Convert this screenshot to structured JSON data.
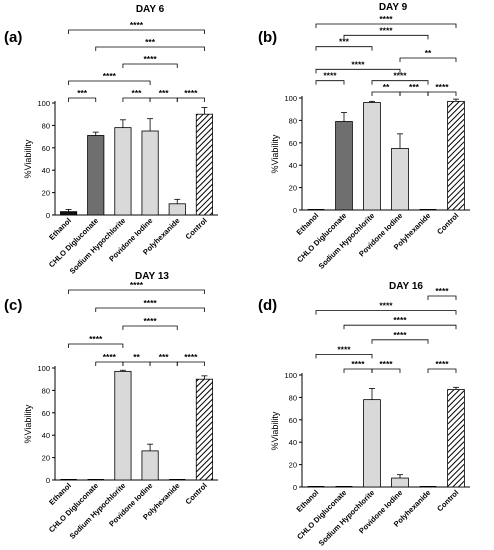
{
  "chart_data": [
    {
      "type": "bar",
      "panel": "(a)",
      "title": "DAY 6",
      "xlabel": "",
      "ylabel": "%Viability",
      "ylim": [
        0,
        100
      ],
      "yticks": [
        0,
        20,
        40,
        60,
        80,
        100
      ],
      "categories": [
        "Ethanol",
        "CHLO Digluconate",
        "Sodium Hypochlorite",
        "Povidone Iodine",
        "Polyhexanide",
        "Control"
      ],
      "values": [
        3,
        71,
        78,
        75,
        10,
        90
      ],
      "errors": [
        2,
        3,
        7,
        11,
        4,
        6
      ],
      "fills": [
        "black",
        "dark",
        "light",
        "light",
        "light",
        "hatch"
      ],
      "brackets": [
        {
          "from": 0,
          "to": 5,
          "label": "****"
        },
        {
          "from": 1,
          "to": 5,
          "label": "***"
        },
        {
          "from": 2,
          "to": 4,
          "label": "****"
        },
        {
          "from": 0,
          "to": 3,
          "label": "****"
        },
        {
          "from": 2,
          "to": 3,
          "label": "***"
        },
        {
          "from": 0,
          "to": 1,
          "label": "***"
        },
        {
          "from": 3,
          "to": 4,
          "label": "***"
        },
        {
          "from": 4,
          "to": 5,
          "label": "****"
        }
      ]
    },
    {
      "type": "bar",
      "panel": "(b)",
      "title": "DAY 9",
      "xlabel": "",
      "ylabel": "%Viability",
      "ylim": [
        0,
        100
      ],
      "yticks": [
        0,
        20,
        40,
        60,
        80,
        100
      ],
      "categories": [
        "Ethanol",
        "CHLO Digluconate",
        "Sodium Hypochlorite",
        "Povidone Iodine",
        "Polyhexanide",
        "Control"
      ],
      "values": [
        0,
        79,
        96,
        55,
        0,
        97
      ],
      "errors": [
        0,
        8,
        1,
        13,
        0,
        2
      ],
      "fills": [
        "black",
        "dark",
        "light",
        "light",
        "light",
        "hatch"
      ],
      "brackets": [
        {
          "from": 0,
          "to": 5,
          "label": "****"
        },
        {
          "from": 1,
          "to": 4,
          "label": "****"
        },
        {
          "from": 0,
          "to": 2,
          "label": "***"
        },
        {
          "from": 3,
          "to": 5,
          "label": "**"
        },
        {
          "from": 0,
          "to": 3,
          "label": "****"
        },
        {
          "from": 2,
          "to": 4,
          "label": "****"
        },
        {
          "from": 0,
          "to": 1,
          "label": "****"
        },
        {
          "from": 2,
          "to": 3,
          "label": "**"
        },
        {
          "from": 3,
          "to": 4,
          "label": "***"
        },
        {
          "from": 4,
          "to": 5,
          "label": "****"
        }
      ]
    },
    {
      "type": "bar",
      "panel": "(c)",
      "title": "DAY 13",
      "xlabel": "",
      "ylabel": "%Viability",
      "ylim": [
        0,
        100
      ],
      "yticks": [
        0,
        20,
        40,
        60,
        80,
        100
      ],
      "categories": [
        "Ethanol",
        "CHLO Digluconate",
        "Sodium Hypochlorite",
        "Povidone Iodine",
        "Polyhexanide",
        "Control"
      ],
      "values": [
        0,
        0,
        97,
        26,
        0,
        90
      ],
      "errors": [
        0,
        0,
        1,
        6,
        0,
        3
      ],
      "fills": [
        "black",
        "dark",
        "light",
        "light",
        "light",
        "hatch"
      ],
      "brackets": [
        {
          "from": 0,
          "to": 5,
          "label": "****"
        },
        {
          "from": 1,
          "to": 5,
          "label": "****"
        },
        {
          "from": 2,
          "to": 4,
          "label": "****"
        },
        {
          "from": 0,
          "to": 2,
          "label": "****"
        },
        {
          "from": 1,
          "to": 2,
          "label": "****"
        },
        {
          "from": 2,
          "to": 3,
          "label": "**"
        },
        {
          "from": 3,
          "to": 4,
          "label": "***"
        },
        {
          "from": 4,
          "to": 5,
          "label": "****"
        }
      ]
    },
    {
      "type": "bar",
      "panel": "(d)",
      "title": "DAY 16",
      "xlabel": "",
      "ylabel": "%Viability",
      "ylim": [
        0,
        100
      ],
      "yticks": [
        0,
        20,
        40,
        60,
        80,
        100
      ],
      "categories": [
        "Ethanol",
        "CHLO Digluconate",
        "Sodium Hypochlorite",
        "Povidone Iodine",
        "Polyhexanide",
        "Control"
      ],
      "values": [
        0,
        0,
        78,
        8,
        0,
        87
      ],
      "errors": [
        0,
        0,
        10,
        3,
        0,
        2
      ],
      "fills": [
        "black",
        "dark",
        "light",
        "light",
        "light",
        "hatch"
      ],
      "brackets": [
        {
          "from": 4,
          "to": 5,
          "label": "****"
        },
        {
          "from": 0,
          "to": 5,
          "label": "****"
        },
        {
          "from": 1,
          "to": 5,
          "label": "****"
        },
        {
          "from": 2,
          "to": 4,
          "label": "****"
        },
        {
          "from": 0,
          "to": 2,
          "label": "****"
        },
        {
          "from": 1,
          "to": 2,
          "label": "****"
        },
        {
          "from": 2,
          "to": 3,
          "label": "****"
        },
        {
          "from": 4,
          "to": 5,
          "label": "****"
        }
      ]
    }
  ],
  "colors": {
    "black": "#111111",
    "dark": "#6f6f6f",
    "light": "#d9d9d9",
    "hatch": "#ffffff",
    "axis": "#000000"
  }
}
